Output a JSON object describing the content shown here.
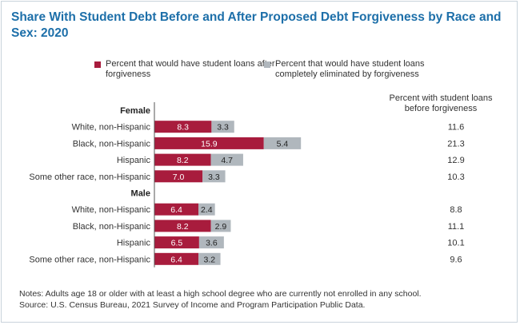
{
  "title": "Share With Student Debt Before and After Proposed Debt Forgiveness by Race and Sex: 2020",
  "legend": {
    "after": "Percent that would have student loans after forgiveness",
    "eliminated": "Percent that would have student loans completely eliminated by forgiveness"
  },
  "before_header": "Percent with student loans before forgiveness",
  "notes": [
    "Notes: Adults age 18 or older with at least a high school degree who are currently not enrolled in any school.",
    "Source: U.S. Census Bureau, 2021 Survey of Income and Program Participation Public Data."
  ],
  "colors": {
    "after": "#a81c3d",
    "eliminated": "#b0b7bd",
    "title": "#1d6fa9",
    "axis": "#555555"
  },
  "chart_data": {
    "type": "bar",
    "orientation": "horizontal",
    "stacked": true,
    "groups": [
      {
        "label": "Female",
        "rows": [
          {
            "category": "White, non-Hispanic",
            "after": 8.3,
            "eliminated": 3.3,
            "before": 11.6
          },
          {
            "category": "Black, non-Hispanic",
            "after": 15.9,
            "eliminated": 5.4,
            "before": 21.3
          },
          {
            "category": "Hispanic",
            "after": 8.2,
            "eliminated": 4.7,
            "before": 12.9
          },
          {
            "category": "Some other race, non-Hispanic",
            "after": 7.0,
            "eliminated": 3.3,
            "before": 10.3
          }
        ]
      },
      {
        "label": "Male",
        "rows": [
          {
            "category": "White, non-Hispanic",
            "after": 6.4,
            "eliminated": 2.4,
            "before": 8.8
          },
          {
            "category": "Black, non-Hispanic",
            "after": 8.2,
            "eliminated": 2.9,
            "before": 11.1
          },
          {
            "category": "Hispanic",
            "after": 6.5,
            "eliminated": 3.6,
            "before": 10.1
          },
          {
            "category": "Some other race, non-Hispanic",
            "after": 6.4,
            "eliminated": 3.2,
            "before": 9.6
          }
        ]
      }
    ],
    "series": [
      {
        "name": "Percent that would have student loans after forgiveness",
        "key": "after"
      },
      {
        "name": "Percent that would have student loans completely eliminated by forgiveness",
        "key": "eliminated"
      }
    ],
    "grid": false
  }
}
